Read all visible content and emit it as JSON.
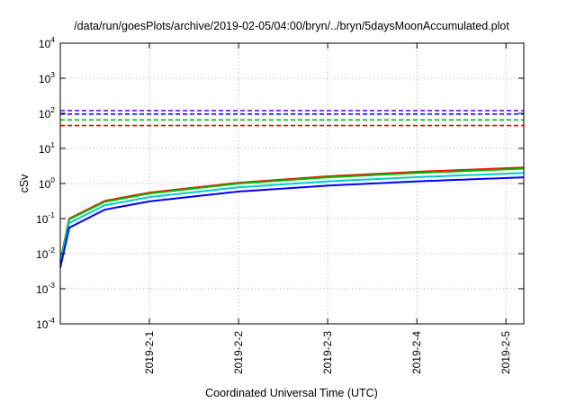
{
  "chart_data": {
    "type": "line",
    "title": "/data/run/goesPlots/archive/2019-02-05/04:00/bryn/../bryn/5daysMoonAccumulated.plot",
    "xlabel": "Coordinated Universal Time (UTC)",
    "ylabel": "cSv",
    "y_scale": "log",
    "ylim": [
      0.0001,
      10000
    ],
    "y_ticks": [
      {
        "base": "10",
        "exp": "-4",
        "value": 0.0001
      },
      {
        "base": "10",
        "exp": "-3",
        "value": 0.001
      },
      {
        "base": "10",
        "exp": "-2",
        "value": 0.01
      },
      {
        "base": "10",
        "exp": "-1",
        "value": 0.1
      },
      {
        "base": "10",
        "exp": "0",
        "value": 1
      },
      {
        "base": "10",
        "exp": "1",
        "value": 10
      },
      {
        "base": "10",
        "exp": "2",
        "value": 100
      },
      {
        "base": "10",
        "exp": "3",
        "value": 1000
      },
      {
        "base": "10",
        "exp": "4",
        "value": 10000
      }
    ],
    "x_range_days": [
      0,
      5.2
    ],
    "x_ticks": [
      {
        "label": "2019-2-1",
        "day": 1
      },
      {
        "label": "2019-2-2",
        "day": 2
      },
      {
        "label": "2019-2-3",
        "day": 3
      },
      {
        "label": "2019-2-4",
        "day": 4
      },
      {
        "label": "2019-2-5",
        "day": 5
      }
    ],
    "grid": true,
    "legend": "none",
    "thresholds": [
      {
        "color": "#7f00ff",
        "value": 120
      },
      {
        "color": "#0000ff",
        "value": 95
      },
      {
        "color": "#00bb00",
        "value": 65
      },
      {
        "color": "#ff0000",
        "value": 45
      }
    ],
    "series": [
      {
        "color": "#ff0000",
        "final_value": 2.85,
        "start_value": 0.006,
        "points": [
          [
            0,
            0.006
          ],
          [
            0.1,
            0.1
          ],
          [
            0.5,
            0.32
          ],
          [
            1,
            0.55
          ],
          [
            2,
            1.05
          ],
          [
            3,
            1.6
          ],
          [
            4,
            2.15
          ],
          [
            5.2,
            2.85
          ]
        ]
      },
      {
        "color": "#00bb00",
        "final_value": 2.65,
        "start_value": 0.006,
        "points": [
          [
            0,
            0.006
          ],
          [
            0.1,
            0.095
          ],
          [
            0.5,
            0.3
          ],
          [
            1,
            0.52
          ],
          [
            2,
            1.0
          ],
          [
            3,
            1.5
          ],
          [
            4,
            2.0
          ],
          [
            5.2,
            2.65
          ]
        ]
      },
      {
        "color": "#00cccc",
        "final_value": 2.0,
        "start_value": 0.005,
        "points": [
          [
            0,
            0.005
          ],
          [
            0.1,
            0.075
          ],
          [
            0.5,
            0.24
          ],
          [
            1,
            0.41
          ],
          [
            2,
            0.78
          ],
          [
            3,
            1.15
          ],
          [
            4,
            1.52
          ],
          [
            5.2,
            2.0
          ]
        ]
      },
      {
        "color": "#0000ff",
        "final_value": 1.5,
        "start_value": 0.004,
        "points": [
          [
            0,
            0.004
          ],
          [
            0.1,
            0.055
          ],
          [
            0.5,
            0.18
          ],
          [
            1,
            0.31
          ],
          [
            2,
            0.59
          ],
          [
            3,
            0.87
          ],
          [
            4,
            1.15
          ],
          [
            5.2,
            1.5
          ]
        ]
      }
    ]
  }
}
